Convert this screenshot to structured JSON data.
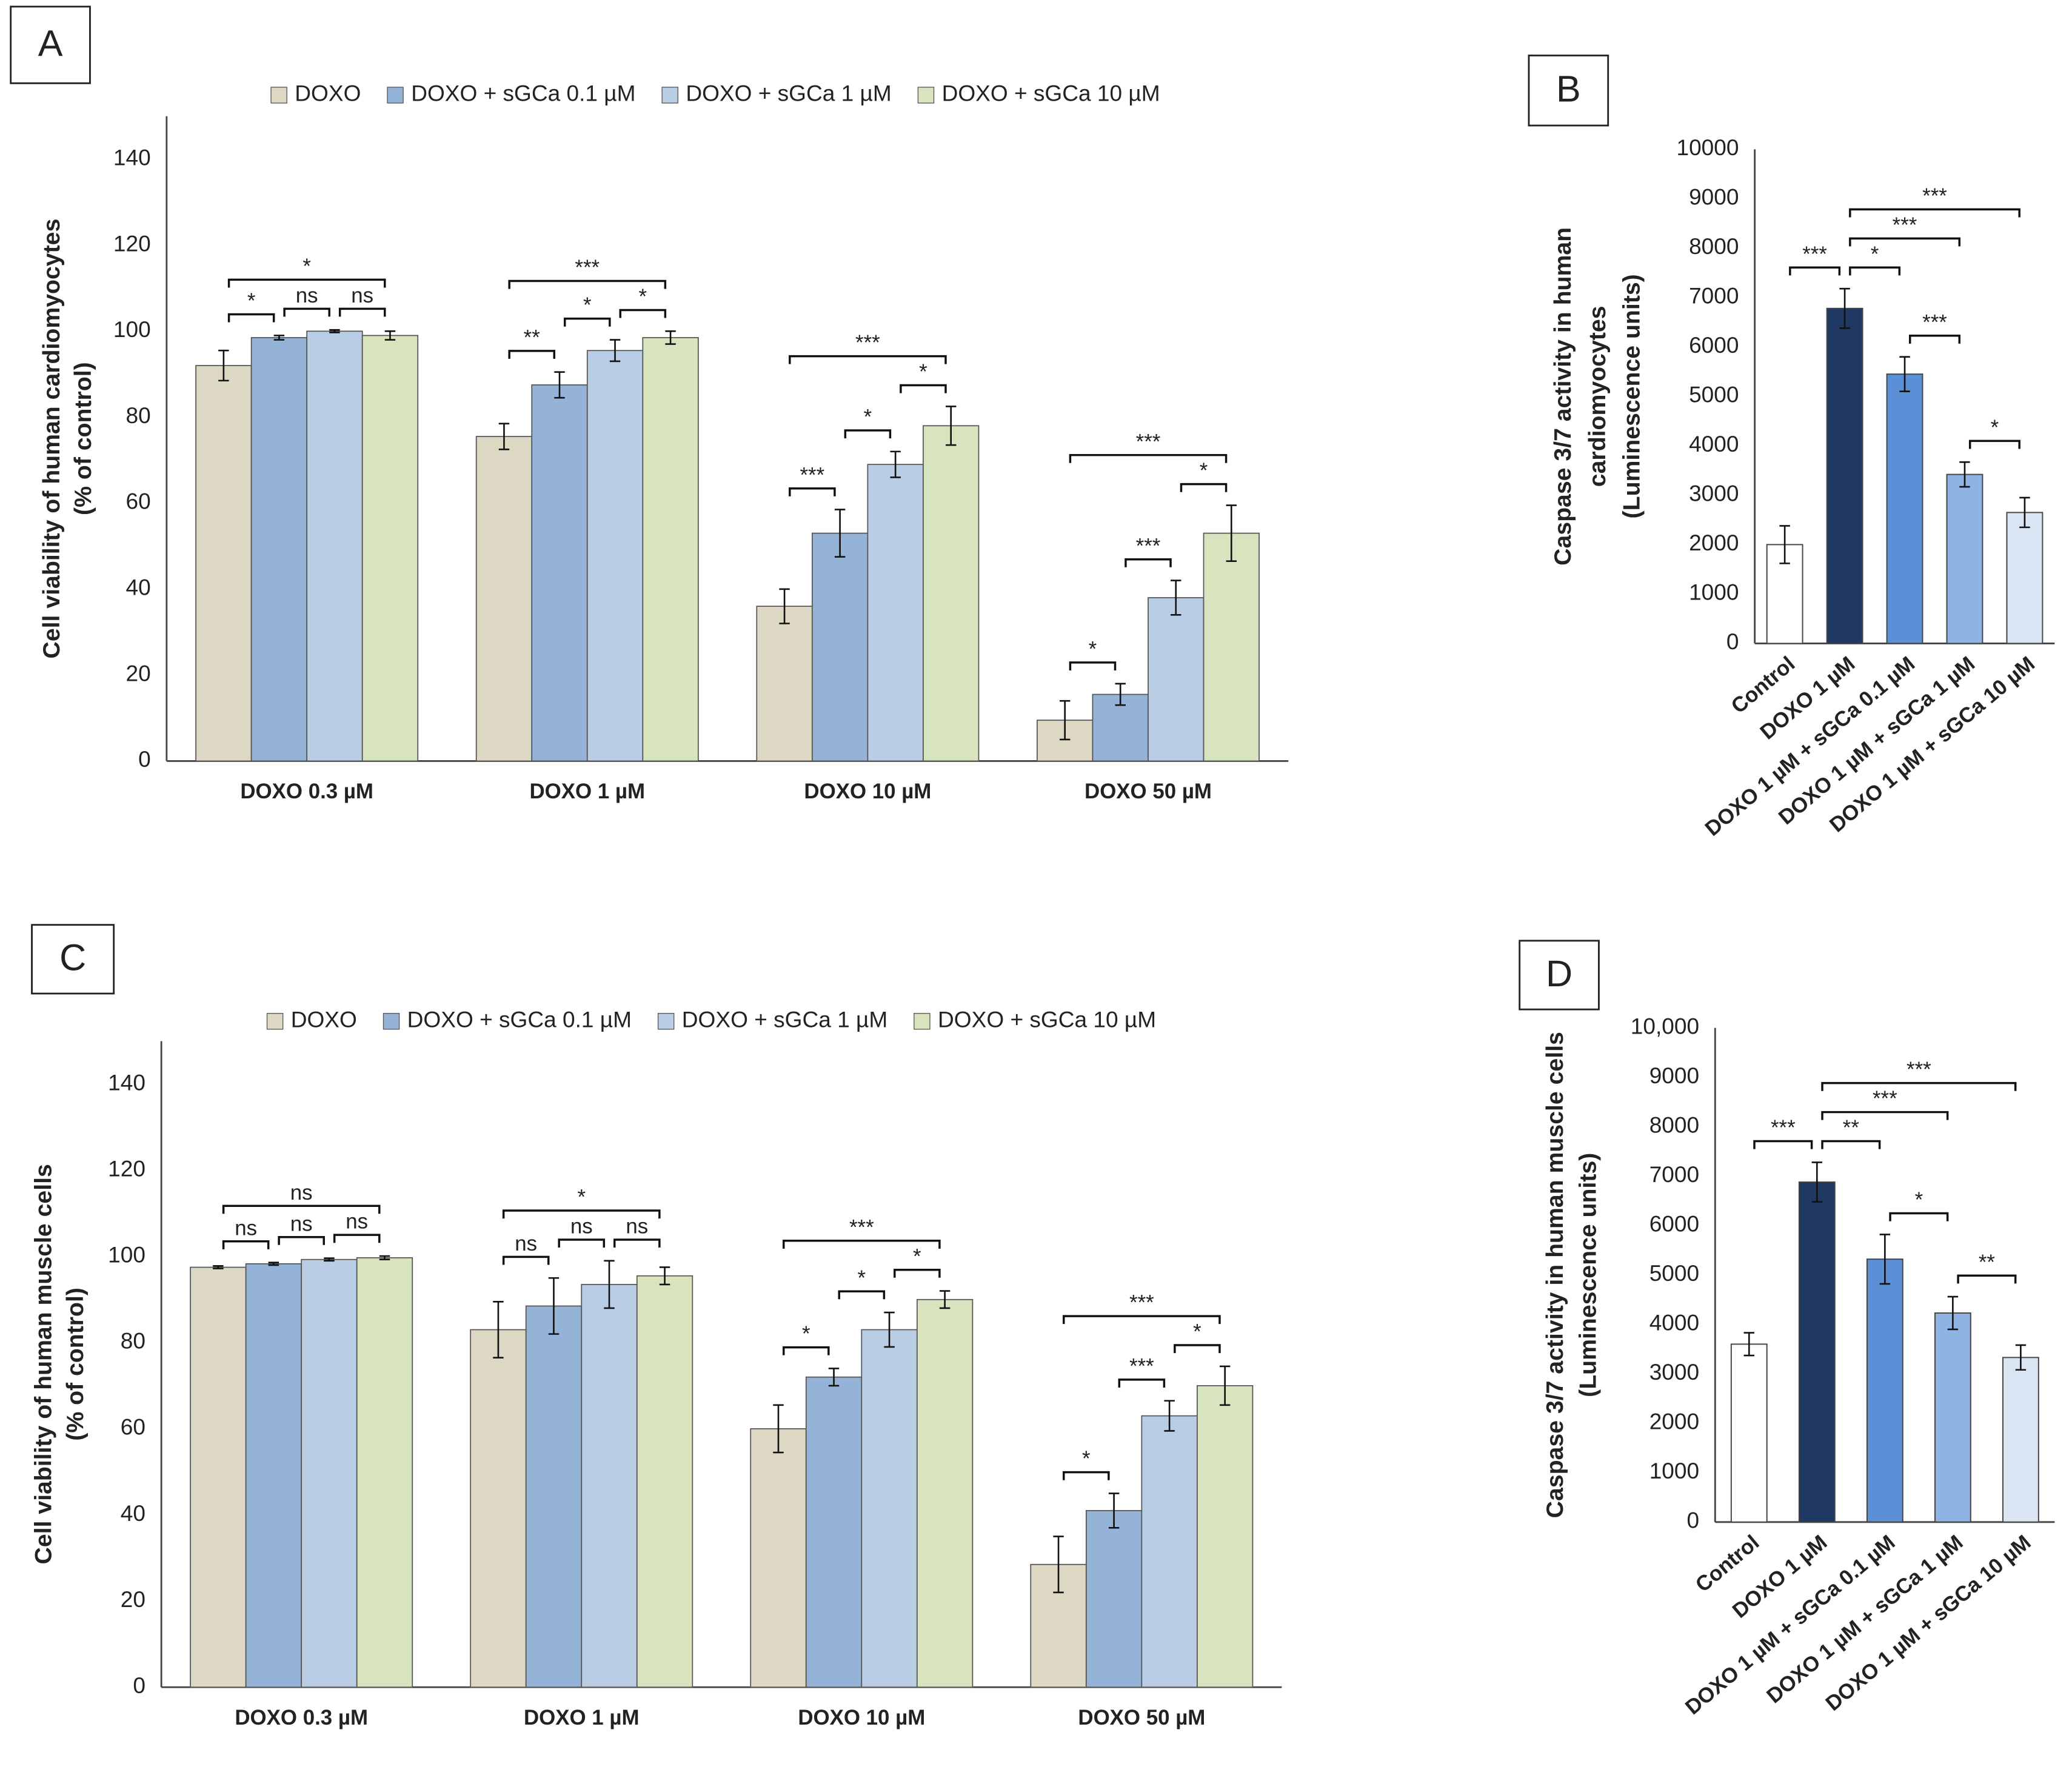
{
  "chart_data": [
    {
      "type": "bar",
      "panel": "A",
      "ylabel_lines": [
        "Cell viability of human cardiomyocytes",
        "(% of control)"
      ],
      "categories": [
        "DOXO  0.3 µM",
        "DOXO 1 µM",
        "DOXO 10 µM",
        "DOXO 50 µM"
      ],
      "series": [
        {
          "name": "DOXO",
          "color": "#ddd8c4",
          "values": [
            92,
            75.5,
            36,
            9.5
          ],
          "errors": [
            3.5,
            3,
            4,
            4.5
          ]
        },
        {
          "name": "DOXO + sGCa 0.1 µM",
          "color": "#94b3d7",
          "values": [
            98.5,
            87.5,
            53,
            15.5
          ],
          "errors": [
            0.5,
            3,
            5.5,
            2.5
          ]
        },
        {
          "name": "DOXO + sGCa  1 µM",
          "color": "#b9cde5",
          "values": [
            100,
            95.5,
            69,
            38
          ],
          "errors": [
            0.3,
            2.5,
            3,
            4
          ]
        },
        {
          "name": "DOXO + sGCa  10 µM",
          "color": "#d7e4bd",
          "values": [
            99,
            98.5,
            78,
            53
          ],
          "errors": [
            1,
            1.5,
            4.5,
            6.5
          ]
        }
      ],
      "ylim": [
        0,
        150
      ],
      "yticks": [
        0,
        20,
        40,
        60,
        80,
        100,
        120,
        140
      ],
      "comparisons": [
        {
          "group": 0,
          "bars": [
            0,
            1
          ],
          "label": "*"
        },
        {
          "group": 0,
          "bars": [
            1,
            2
          ],
          "label": "ns"
        },
        {
          "group": 0,
          "bars": [
            2,
            3
          ],
          "label": "ns"
        },
        {
          "group": 0,
          "bars": [
            0,
            3
          ],
          "label": "*"
        },
        {
          "group": 1,
          "bars": [
            0,
            1
          ],
          "label": "**"
        },
        {
          "group": 1,
          "bars": [
            1,
            2
          ],
          "label": "*"
        },
        {
          "group": 1,
          "bars": [
            2,
            3
          ],
          "label": "*"
        },
        {
          "group": 1,
          "bars": [
            0,
            3
          ],
          "label": "***"
        },
        {
          "group": 2,
          "bars": [
            0,
            1
          ],
          "label": "***"
        },
        {
          "group": 2,
          "bars": [
            1,
            2
          ],
          "label": "*"
        },
        {
          "group": 2,
          "bars": [
            2,
            3
          ],
          "label": "*"
        },
        {
          "group": 2,
          "bars": [
            0,
            3
          ],
          "label": "***"
        },
        {
          "group": 3,
          "bars": [
            0,
            1
          ],
          "label": "*"
        },
        {
          "group": 3,
          "bars": [
            1,
            2
          ],
          "label": "***"
        },
        {
          "group": 3,
          "bars": [
            2,
            3
          ],
          "label": "*"
        },
        {
          "group": 3,
          "bars": [
            0,
            3
          ],
          "label": "***"
        }
      ]
    },
    {
      "type": "bar",
      "panel": "B",
      "ylabel_lines": [
        "Caspase 3/7 activity in human",
        "cardiomyocytes",
        "(Luminescence units)"
      ],
      "categories": [
        "Control",
        "DOXO 1 µM",
        "DOXO 1 µM + sGCa 0.1 µM",
        "DOXO 1 µM + sGCa  1 µM",
        "DOXO 1 µM + sGCa 10 µM"
      ],
      "values": [
        2000,
        6780,
        5450,
        3420,
        2650
      ],
      "errors": [
        380,
        400,
        350,
        250,
        300
      ],
      "colors": [
        "#ffffff",
        "#1f3864",
        "#5b8fd6",
        "#8fb4e3",
        "#dae5f3"
      ],
      "ylim": [
        0,
        10000
      ],
      "yticks": [
        0,
        1000,
        2000,
        3000,
        4000,
        5000,
        6000,
        7000,
        8000,
        9000,
        10000
      ],
      "comparisons": [
        {
          "bars": [
            0,
            1
          ],
          "label": "***"
        },
        {
          "bars": [
            1,
            2
          ],
          "label": "*"
        },
        {
          "bars": [
            2,
            3
          ],
          "label": "***"
        },
        {
          "bars": [
            3,
            4
          ],
          "label": "*"
        },
        {
          "bars": [
            1,
            3
          ],
          "label": "***"
        },
        {
          "bars": [
            1,
            4
          ],
          "label": "***"
        }
      ]
    },
    {
      "type": "bar",
      "panel": "C",
      "ylabel_lines": [
        "Cell viability of human muscle cells",
        "(% of control)"
      ],
      "categories": [
        "DOXO  0.3 µM",
        "DOXO 1 µM",
        "DOXO 10 µM",
        "DOXO 50 µM"
      ],
      "series": [
        {
          "name": "DOXO",
          "color": "#ddd8c4",
          "values": [
            97.5,
            83,
            60,
            28.5
          ],
          "errors": [
            0.3,
            6.5,
            5.5,
            6.5
          ]
        },
        {
          "name": "DOXO + sGCa 0.1 µM",
          "color": "#94b3d7",
          "values": [
            98.3,
            88.5,
            72,
            41
          ],
          "errors": [
            0.3,
            6.5,
            2,
            4
          ]
        },
        {
          "name": "DOXO + sGCa  1 µM",
          "color": "#b9cde5",
          "values": [
            99.3,
            93.5,
            83,
            63
          ],
          "errors": [
            0.3,
            5.5,
            4,
            3.5
          ]
        },
        {
          "name": "DOXO + sGCa  10 µM",
          "color": "#d7e4bd",
          "values": [
            99.7,
            95.5,
            90,
            70
          ],
          "errors": [
            0.4,
            2,
            2,
            4.5
          ]
        }
      ],
      "ylim": [
        0,
        150
      ],
      "yticks": [
        0,
        20,
        40,
        60,
        80,
        100,
        120,
        140
      ],
      "comparisons": [
        {
          "group": 0,
          "bars": [
            0,
            1
          ],
          "label": "ns"
        },
        {
          "group": 0,
          "bars": [
            1,
            2
          ],
          "label": "ns"
        },
        {
          "group": 0,
          "bars": [
            2,
            3
          ],
          "label": "ns"
        },
        {
          "group": 0,
          "bars": [
            0,
            3
          ],
          "label": "ns"
        },
        {
          "group": 1,
          "bars": [
            0,
            1
          ],
          "label": "ns"
        },
        {
          "group": 1,
          "bars": [
            1,
            2
          ],
          "label": "ns"
        },
        {
          "group": 1,
          "bars": [
            2,
            3
          ],
          "label": "ns"
        },
        {
          "group": 1,
          "bars": [
            0,
            3
          ],
          "label": "*"
        },
        {
          "group": 2,
          "bars": [
            0,
            1
          ],
          "label": "*"
        },
        {
          "group": 2,
          "bars": [
            1,
            2
          ],
          "label": "*"
        },
        {
          "group": 2,
          "bars": [
            2,
            3
          ],
          "label": "*"
        },
        {
          "group": 2,
          "bars": [
            0,
            3
          ],
          "label": "***"
        },
        {
          "group": 3,
          "bars": [
            0,
            1
          ],
          "label": "*"
        },
        {
          "group": 3,
          "bars": [
            1,
            2
          ],
          "label": "***"
        },
        {
          "group": 3,
          "bars": [
            2,
            3
          ],
          "label": "*"
        },
        {
          "group": 3,
          "bars": [
            0,
            3
          ],
          "label": "***"
        }
      ]
    },
    {
      "type": "bar",
      "panel": "D",
      "ylabel_lines": [
        "Caspase 3/7 activity in human muscle cells",
        "(Luminescence units)"
      ],
      "categories": [
        "Control",
        "DOXO 1 µM",
        "DOXO 1 µM + sGCa 0.1 µM",
        "DOXO 1 µM + sGCa  1 µM",
        "DOXO 1 µM + sGCa 10 µM"
      ],
      "values": [
        3600,
        6880,
        5320,
        4230,
        3330
      ],
      "errors": [
        230,
        400,
        500,
        330,
        250
      ],
      "colors": [
        "#ffffff",
        "#1f3864",
        "#5b8fd6",
        "#8fb4e3",
        "#dae5f3"
      ],
      "ylim": [
        0,
        10000
      ],
      "yticks": [
        0,
        1000,
        2000,
        3000,
        4000,
        5000,
        6000,
        7000,
        8000,
        9000,
        {
          "value": 10000,
          "label": "10,000"
        }
      ],
      "comparisons": [
        {
          "bars": [
            0,
            1
          ],
          "label": "***"
        },
        {
          "bars": [
            1,
            2
          ],
          "label": "**"
        },
        {
          "bars": [
            2,
            3
          ],
          "label": "*"
        },
        {
          "bars": [
            3,
            4
          ],
          "label": "**"
        },
        {
          "bars": [
            1,
            3
          ],
          "label": "***"
        },
        {
          "bars": [
            1,
            4
          ],
          "label": "***"
        }
      ]
    }
  ]
}
